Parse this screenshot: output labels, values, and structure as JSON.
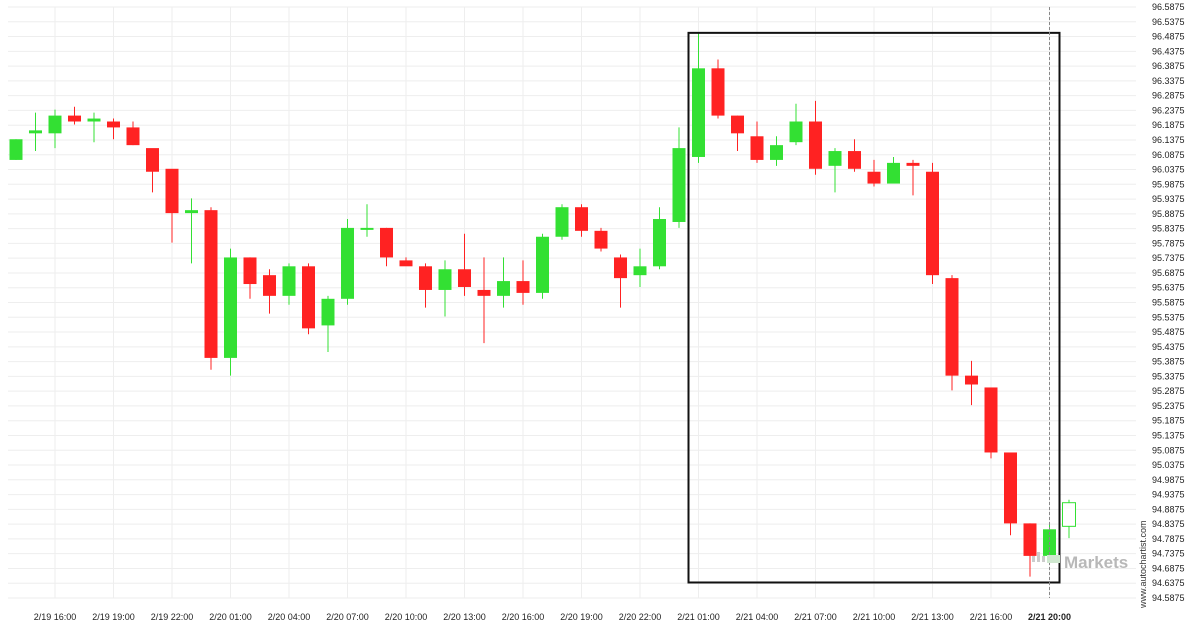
{
  "chart_data": {
    "type": "candlestick",
    "y_ticks": [
      "96.5875",
      "96.5375",
      "96.4875",
      "96.4375",
      "96.3875",
      "96.3375",
      "96.2875",
      "96.2375",
      "96.1875",
      "96.1375",
      "96.0875",
      "96.0375",
      "95.9875",
      "95.9375",
      "95.8875",
      "95.8375",
      "95.7875",
      "95.7375",
      "95.6875",
      "95.6375",
      "95.5875",
      "95.5375",
      "95.4875",
      "95.4375",
      "95.3875",
      "95.3375",
      "95.2875",
      "95.2375",
      "95.1875",
      "95.1375",
      "95.0875",
      "95.0375",
      "94.9875",
      "94.9375",
      "94.8875",
      "94.8375",
      "94.7875",
      "94.7375",
      "94.6875",
      "94.6375",
      "94.5875"
    ],
    "ylim": [
      94.5875,
      96.5875
    ],
    "x_ticks": [
      {
        "label": "2/19 16:00",
        "index": 2
      },
      {
        "label": "2/19 19:00",
        "index": 5
      },
      {
        "label": "2/19 22:00",
        "index": 8
      },
      {
        "label": "2/20 01:00",
        "index": 11
      },
      {
        "label": "2/20 04:00",
        "index": 14
      },
      {
        "label": "2/20 07:00",
        "index": 17
      },
      {
        "label": "2/20 10:00",
        "index": 20
      },
      {
        "label": "2/20 13:00",
        "index": 23
      },
      {
        "label": "2/20 16:00",
        "index": 26
      },
      {
        "label": "2/20 19:00",
        "index": 29
      },
      {
        "label": "2/20 22:00",
        "index": 32
      },
      {
        "label": "2/21 01:00",
        "index": 35
      },
      {
        "label": "2/21 04:00",
        "index": 38
      },
      {
        "label": "2/21 07:00",
        "index": 41
      },
      {
        "label": "2/21 10:00",
        "index": 44
      },
      {
        "label": "2/21 13:00",
        "index": 47
      },
      {
        "label": "2/21 16:00",
        "index": 50
      },
      {
        "label": "2/21 20:00",
        "index": 53,
        "bold": true
      }
    ],
    "candles": [
      {
        "o": 96.07,
        "h": 96.14,
        "l": 96.07,
        "c": 96.14
      },
      {
        "o": 96.16,
        "h": 96.23,
        "l": 96.1,
        "c": 96.17
      },
      {
        "o": 96.16,
        "h": 96.24,
        "l": 96.11,
        "c": 96.22
      },
      {
        "o": 96.22,
        "h": 96.25,
        "l": 96.19,
        "c": 96.2
      },
      {
        "o": 96.2,
        "h": 96.23,
        "l": 96.13,
        "c": 96.21
      },
      {
        "o": 96.2,
        "h": 96.21,
        "l": 96.14,
        "c": 96.18
      },
      {
        "o": 96.18,
        "h": 96.2,
        "l": 96.12,
        "c": 96.12
      },
      {
        "o": 96.11,
        "h": 96.1,
        "l": 95.96,
        "c": 96.03
      },
      {
        "o": 96.04,
        "h": 96.03,
        "l": 95.79,
        "c": 95.89
      },
      {
        "o": 95.89,
        "h": 95.94,
        "l": 95.72,
        "c": 95.9
      },
      {
        "o": 95.9,
        "h": 95.91,
        "l": 95.36,
        "c": 95.4
      },
      {
        "o": 95.4,
        "h": 95.77,
        "l": 95.34,
        "c": 95.74
      },
      {
        "o": 95.74,
        "h": 95.74,
        "l": 95.6,
        "c": 95.65
      },
      {
        "o": 95.68,
        "h": 95.7,
        "l": 95.55,
        "c": 95.61
      },
      {
        "o": 95.61,
        "h": 95.72,
        "l": 95.58,
        "c": 95.71
      },
      {
        "o": 95.71,
        "h": 95.72,
        "l": 95.48,
        "c": 95.5
      },
      {
        "o": 95.51,
        "h": 95.61,
        "l": 95.42,
        "c": 95.6
      },
      {
        "o": 95.6,
        "h": 95.87,
        "l": 95.58,
        "c": 95.84
      },
      {
        "o": 95.84,
        "h": 95.92,
        "l": 95.81,
        "c": 95.84
      },
      {
        "o": 95.84,
        "h": 95.84,
        "l": 95.71,
        "c": 95.74
      },
      {
        "o": 95.73,
        "h": 95.74,
        "l": 95.72,
        "c": 95.71
      },
      {
        "o": 95.71,
        "h": 95.72,
        "l": 95.57,
        "c": 95.63
      },
      {
        "o": 95.63,
        "h": 95.73,
        "l": 95.54,
        "c": 95.7
      },
      {
        "o": 95.7,
        "h": 95.82,
        "l": 95.61,
        "c": 95.64
      },
      {
        "o": 95.63,
        "h": 95.74,
        "l": 95.45,
        "c": 95.61
      },
      {
        "o": 95.61,
        "h": 95.74,
        "l": 95.57,
        "c": 95.66
      },
      {
        "o": 95.66,
        "h": 95.73,
        "l": 95.58,
        "c": 95.62
      },
      {
        "o": 95.62,
        "h": 95.82,
        "l": 95.6,
        "c": 95.81
      },
      {
        "o": 95.81,
        "h": 95.92,
        "l": 95.8,
        "c": 95.91
      },
      {
        "o": 95.91,
        "h": 95.92,
        "l": 95.81,
        "c": 95.83
      },
      {
        "o": 95.83,
        "h": 95.84,
        "l": 95.76,
        "c": 95.77
      },
      {
        "o": 95.74,
        "h": 95.75,
        "l": 95.57,
        "c": 95.67
      },
      {
        "o": 95.68,
        "h": 95.77,
        "l": 95.64,
        "c": 95.71
      },
      {
        "o": 95.71,
        "h": 95.91,
        "l": 95.7,
        "c": 95.87
      },
      {
        "o": 95.86,
        "h": 96.18,
        "l": 95.84,
        "c": 96.11
      },
      {
        "o": 96.08,
        "h": 96.5,
        "l": 96.06,
        "c": 96.38
      },
      {
        "o": 96.38,
        "h": 96.41,
        "l": 96.21,
        "c": 96.22
      },
      {
        "o": 96.22,
        "h": 96.22,
        "l": 96.1,
        "c": 96.16
      },
      {
        "o": 96.15,
        "h": 96.2,
        "l": 96.06,
        "c": 96.07
      },
      {
        "o": 96.07,
        "h": 96.15,
        "l": 96.05,
        "c": 96.12
      },
      {
        "o": 96.13,
        "h": 96.26,
        "l": 96.12,
        "c": 96.2
      },
      {
        "o": 96.2,
        "h": 96.27,
        "l": 96.02,
        "c": 96.04
      },
      {
        "o": 96.05,
        "h": 96.11,
        "l": 95.96,
        "c": 96.1
      },
      {
        "o": 96.1,
        "h": 96.14,
        "l": 96.03,
        "c": 96.04
      },
      {
        "o": 96.03,
        "h": 96.07,
        "l": 95.98,
        "c": 95.99
      },
      {
        "o": 95.99,
        "h": 96.08,
        "l": 95.99,
        "c": 96.06
      },
      {
        "o": 96.06,
        "h": 96.07,
        "l": 95.95,
        "c": 96.05
      },
      {
        "o": 96.03,
        "h": 96.06,
        "l": 95.65,
        "c": 95.68
      },
      {
        "o": 95.67,
        "h": 95.68,
        "l": 95.29,
        "c": 95.34
      },
      {
        "o": 95.34,
        "h": 95.39,
        "l": 95.24,
        "c": 95.31
      },
      {
        "o": 95.3,
        "h": 95.3,
        "l": 95.06,
        "c": 95.08
      },
      {
        "o": 95.08,
        "h": 95.08,
        "l": 94.8,
        "c": 94.84
      },
      {
        "o": 94.84,
        "h": 94.84,
        "l": 94.66,
        "c": 94.73
      },
      {
        "o": 94.73,
        "h": 94.84,
        "l": 94.7,
        "c": 94.82
      },
      {
        "o": 94.83,
        "h": 94.92,
        "l": 94.79,
        "c": 94.91,
        "current": true
      }
    ],
    "colors": {
      "up": "#33e033",
      "down": "#ff2222",
      "frame": "#111111",
      "grid": "#eeeeee",
      "current_line": "#888888"
    },
    "highlight_box": {
      "from_index": 35,
      "to_index": 53,
      "top": 96.5,
      "bottom": 94.64
    },
    "current_line_index": 53,
    "side_text": "www.autochartist.com",
    "brand_text": "Markets"
  }
}
